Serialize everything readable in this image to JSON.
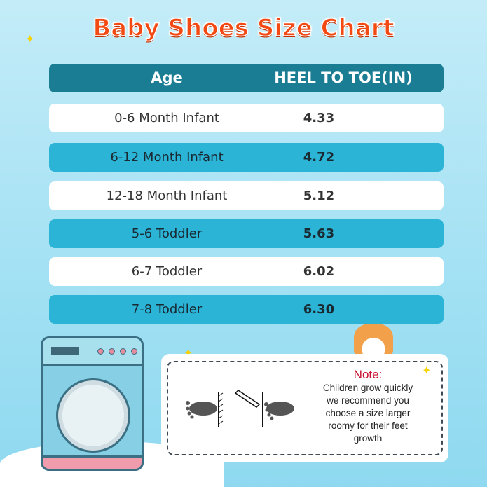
{
  "title": "Baby Shoes Size Chart",
  "table": {
    "headers": [
      "Age",
      "HEEL TO TOE(IN)"
    ],
    "rows": [
      {
        "age": "0-6 Month Infant",
        "heel_to_toe": "4.33"
      },
      {
        "age": "6-12 Month Infant",
        "heel_to_toe": "4.72"
      },
      {
        "age": "12-18 Month Infant",
        "heel_to_toe": "5.12"
      },
      {
        "age": "5-6 Toddler",
        "heel_to_toe": "5.63"
      },
      {
        "age": "6-7 Toddler",
        "heel_to_toe": "6.02"
      },
      {
        "age": "7-8 Toddler",
        "heel_to_toe": "6.30"
      }
    ]
  },
  "note": {
    "heading": "Note:",
    "lines": [
      "Children grow quickly",
      "we recommend you",
      "choose a size larger",
      "roomy for their feet",
      "growth"
    ]
  },
  "colors": {
    "title": "#f24a12",
    "header": "#1b7d93",
    "teal_row": "#2bb4d6",
    "note_heading": "#c8102e"
  }
}
